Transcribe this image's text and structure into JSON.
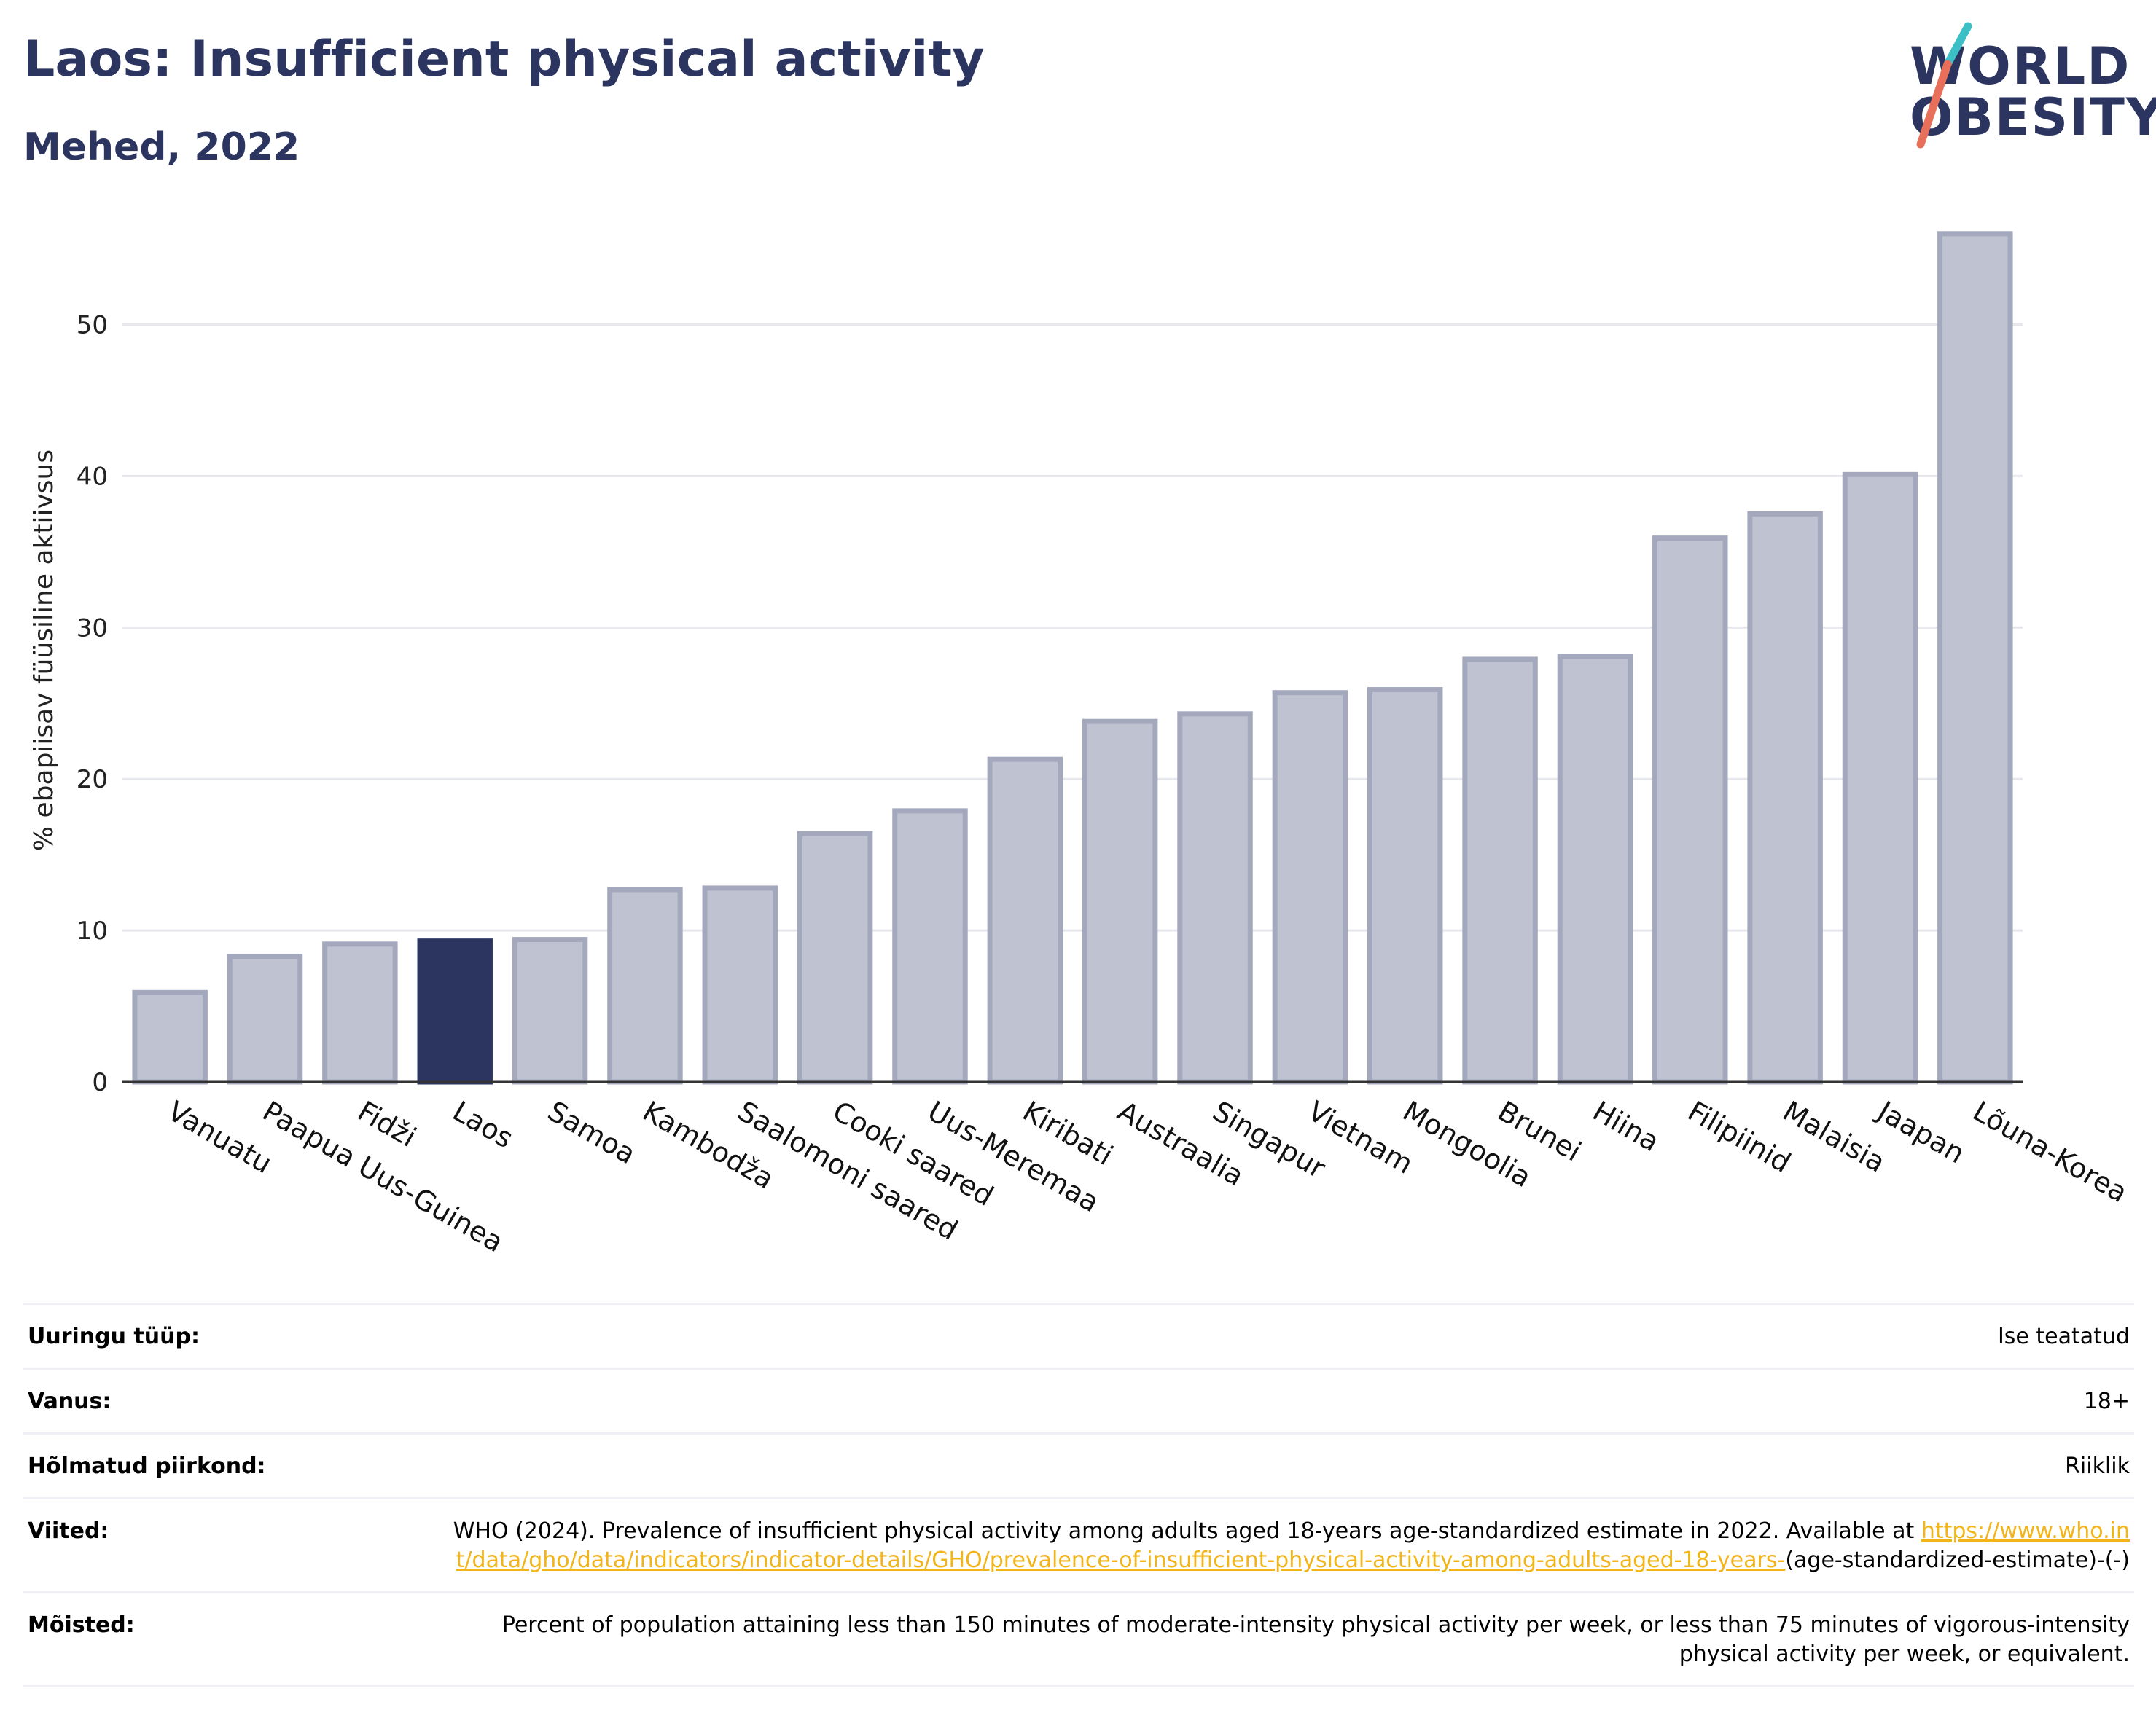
{
  "header": {
    "title": "Laos: Insufficient physical activity",
    "subtitle": "Mehed, 2022"
  },
  "logo": {
    "line1": "WORLD",
    "line2": "OBESITY",
    "colors": {
      "text": "#2b3560",
      "slash_top": "#3cc0c6",
      "slash_bottom": "#e8705a"
    }
  },
  "chart_data": {
    "type": "bar",
    "title": "",
    "xlabel": "",
    "ylabel": "% ebapiisav füüsiline aktiivsus",
    "ylim": [
      0,
      57
    ],
    "yticks": [
      0,
      10,
      20,
      30,
      40,
      50
    ],
    "grid": true,
    "highlight": "Laos",
    "colors": {
      "bar": "#bfc3d1",
      "bar_border": "#a3a8bd",
      "highlight": "#2b3560"
    },
    "categories": [
      "Vanuatu",
      "Paapua Uus-Guinea",
      "Fidži",
      "Laos",
      "Samoa",
      "Kambodža",
      "Saalomoni saared",
      "Cooki saared",
      "Uus-Meremaa",
      "Kiribati",
      "Austraalia",
      "Singapur",
      "Vietnam",
      "Mongoolia",
      "Brunei",
      "Hiina",
      "Filipiinid",
      "Malaisia",
      "Jaapan",
      "Lõuna-Korea"
    ],
    "values": [
      5.9,
      8.3,
      9.1,
      9.3,
      9.4,
      12.7,
      12.8,
      16.4,
      17.9,
      21.3,
      23.8,
      24.3,
      25.7,
      25.9,
      27.9,
      28.1,
      35.9,
      37.5,
      40.1,
      56.0
    ]
  },
  "info": {
    "rows": [
      {
        "label": "Uuringu tüüp:",
        "value": "Ise teatatud"
      },
      {
        "label": "Vanus:",
        "value": "18+"
      },
      {
        "label": "Hõlmatud piirkond:",
        "value": "Riiklik"
      }
    ],
    "references": {
      "label": "Viited:",
      "text": "WHO (2024). Prevalence of insufficient physical activity among adults aged 18-years age-standardized estimate in 2022. Available at",
      "link": "https://www.who.int/data/gho/data/indicators/indicator-details/GHO/prevalence-of-insufficient-physical-activity-among-adults-aged-18-years-",
      "suffix": "(age-standardized-estimate)-(-)"
    },
    "definitions": {
      "label": "Mõisted:",
      "value": "Percent of population attaining less than 150 minutes of moderate-intensity physical activity per week, or less than 75 minutes of vigorous-intensity physical activity per week, or equivalent."
    }
  }
}
